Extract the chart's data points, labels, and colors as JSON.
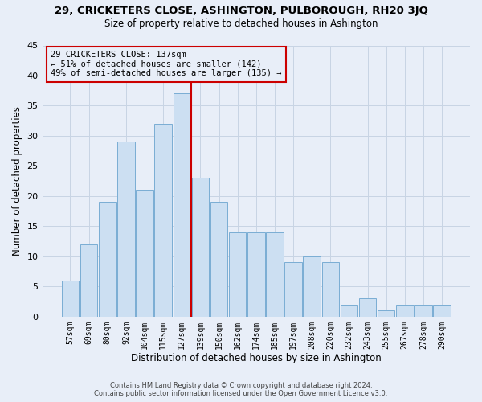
{
  "title": "29, CRICKETERS CLOSE, ASHINGTON, PULBOROUGH, RH20 3JQ",
  "subtitle": "Size of property relative to detached houses in Ashington",
  "xlabel": "Distribution of detached houses by size in Ashington",
  "ylabel": "Number of detached properties",
  "bar_labels": [
    "57sqm",
    "69sqm",
    "80sqm",
    "92sqm",
    "104sqm",
    "115sqm",
    "127sqm",
    "139sqm",
    "150sqm",
    "162sqm",
    "174sqm",
    "185sqm",
    "197sqm",
    "208sqm",
    "220sqm",
    "232sqm",
    "243sqm",
    "255sqm",
    "267sqm",
    "278sqm",
    "290sqm"
  ],
  "bar_values": [
    6,
    12,
    19,
    29,
    21,
    32,
    37,
    23,
    19,
    14,
    14,
    14,
    9,
    10,
    9,
    2,
    3,
    1,
    2,
    2,
    2
  ],
  "bar_color": "#ccdff2",
  "bar_edge_color": "#7aadd4",
  "grid_color": "#c8d4e4",
  "background_color": "#e8eef8",
  "annotation_line_color": "#cc0000",
  "annotation_text_line1": "29 CRICKETERS CLOSE: 137sqm",
  "annotation_text_line2": "← 51% of detached houses are smaller (142)",
  "annotation_text_line3": "49% of semi-detached houses are larger (135) →",
  "annotation_box_edge_color": "#cc0000",
  "footer_line1": "Contains HM Land Registry data © Crown copyright and database right 2024.",
  "footer_line2": "Contains public sector information licensed under the Open Government Licence v3.0.",
  "ylim": [
    0,
    45
  ],
  "yticks": [
    0,
    5,
    10,
    15,
    20,
    25,
    30,
    35,
    40,
    45
  ],
  "line_bar_index": 7
}
